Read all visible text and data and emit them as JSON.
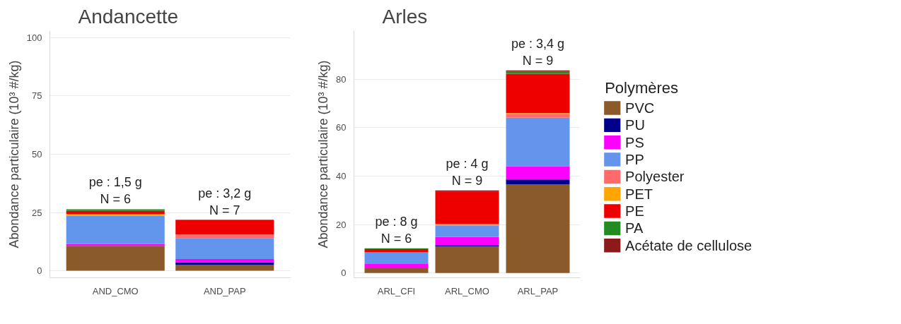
{
  "chart_data": [
    {
      "type": "bar",
      "title": "Andancette",
      "ylabel": "Abondance particulaire (10³ #/kg)",
      "stacked": true,
      "categories": [
        "AND_CMO",
        "AND_PAP"
      ],
      "ylim": [
        -3,
        103
      ],
      "yticks": [
        0,
        25,
        50,
        75,
        100
      ],
      "grid": "y",
      "legend": false,
      "series": [
        {
          "color": "#8b5a2b",
          "values": [
            10.7,
            2.6
          ]
        },
        {
          "color": "#00008b",
          "values": [
            0,
            1.0
          ]
        },
        {
          "color": "#ff00ff",
          "values": [
            0.8,
            1.4
          ]
        },
        {
          "color": "#6495ed",
          "values": [
            12.1,
            9.0
          ]
        },
        {
          "color": "#ff6a6a",
          "values": [
            0,
            1.6
          ]
        },
        {
          "color": "#ffa500",
          "values": [
            0.7,
            0
          ]
        },
        {
          "color": "#ee0000",
          "values": [
            1.4,
            6.1
          ]
        },
        {
          "color": "#228b22",
          "values": [
            0.7,
            0.2
          ]
        },
        {
          "color": "#8b1a1a",
          "values": [
            0,
            0
          ]
        }
      ],
      "annotations": [
        {
          "text": "pe : 1,5 g\nN = 6",
          "x": "AND_CMO",
          "y": 26.4
        },
        {
          "text": "pe : 3,2 g\nN = 7",
          "x": "AND_PAP",
          "y": 21.8
        }
      ]
    },
    {
      "type": "bar",
      "title": "Arles",
      "ylabel": "Abondance particulaire (10³ #/kg)",
      "stacked": true,
      "categories": [
        "ARL_CFI",
        "ARL_CMO",
        "ARL_PAP"
      ],
      "ylim": [
        -2,
        100
      ],
      "yticks": [
        0,
        20,
        40,
        60,
        80
      ],
      "grid": "y",
      "legend": "right",
      "legend_title": "Polymères",
      "series": [
        {
          "name": "PVC",
          "color": "#8b5a2b",
          "values": [
            1.9,
            11.0,
            36.6
          ]
        },
        {
          "name": "PU",
          "color": "#00008b",
          "values": [
            0,
            0.5,
            2.0
          ]
        },
        {
          "name": "PS",
          "color": "#ff00ff",
          "values": [
            1.8,
            3.3,
            5.4
          ]
        },
        {
          "name": "PP",
          "color": "#6495ed",
          "values": [
            4.8,
            4.8,
            20.1
          ]
        },
        {
          "name": "Polyester",
          "color": "#ff6a6a",
          "values": [
            0,
            0.3,
            1.4
          ]
        },
        {
          "name": "PET",
          "color": "#ffa500",
          "values": [
            0,
            0.3,
            0.5
          ]
        },
        {
          "name": "PE",
          "color": "#ee0000",
          "values": [
            1.3,
            13.3,
            16.2
          ]
        },
        {
          "name": "PA",
          "color": "#228b22",
          "values": [
            0.4,
            0,
            1.0
          ]
        },
        {
          "name": "Acétate de cellulose",
          "color": "#8b1a1a",
          "values": [
            0,
            0.6,
            0.4
          ]
        }
      ],
      "annotations": [
        {
          "text": "pe : 8 g\nN = 6",
          "x": "ARL_CFI",
          "y": 10.2
        },
        {
          "text": "pe : 4 g\nN = 9",
          "x": "ARL_CMO",
          "y": 34.1
        },
        {
          "text": "pe : 3,4 g\nN = 9",
          "x": "ARL_PAP",
          "y": 83.6
        }
      ]
    }
  ]
}
